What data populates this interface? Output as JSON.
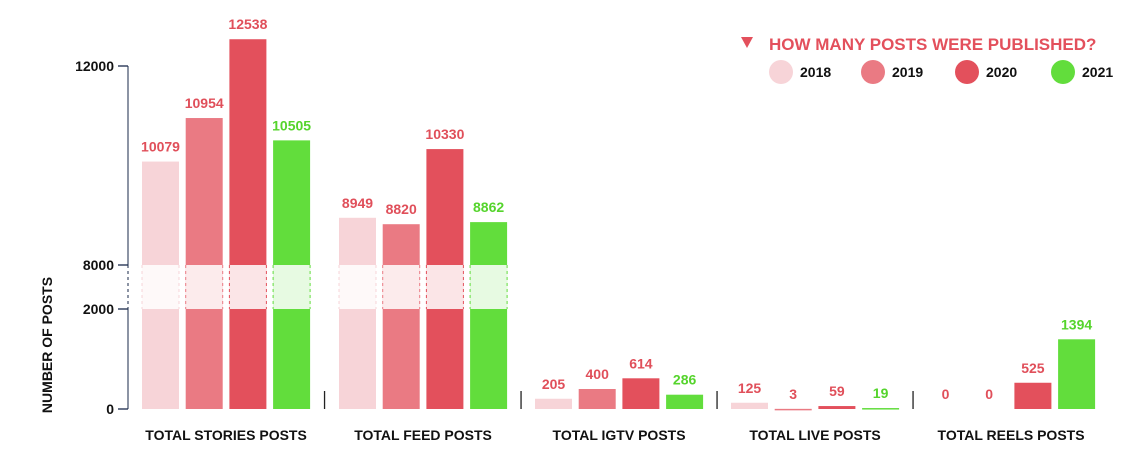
{
  "chart_data": {
    "type": "bar",
    "title": "",
    "xlabel": "",
    "ylabel": "NUMBER OF POSTS",
    "ylim": [
      0,
      12000
    ],
    "y_axis_break": [
      2000,
      8000
    ],
    "y_ticks": [
      0,
      2000,
      8000,
      12000
    ],
    "grid": false,
    "legend_title": "HOW MANY POSTS WERE PUBLISHED?",
    "legend_position": "top-right",
    "categories": [
      "TOTAL STORIES POSTS",
      "TOTAL FEED POSTS",
      "TOTAL IGTV POSTS",
      "TOTAL LIVE POSTS",
      "TOTAL REELS POSTS"
    ],
    "series": [
      {
        "name": "2018",
        "color": "#f7d4d8",
        "label_color": "#e04f5a",
        "values": [
          10079,
          8949,
          205,
          125,
          0
        ]
      },
      {
        "name": "2019",
        "color": "#ea7a83",
        "label_color": "#e04f5a",
        "values": [
          10954,
          8820,
          400,
          3,
          0
        ]
      },
      {
        "name": "2020",
        "color": "#e3505c",
        "label_color": "#e04f5a",
        "values": [
          12538,
          10330,
          614,
          59,
          525
        ]
      },
      {
        "name": "2021",
        "color": "#62dd3c",
        "label_color": "#55d42c",
        "values": [
          10505,
          8862,
          286,
          19,
          1394
        ]
      }
    ]
  }
}
